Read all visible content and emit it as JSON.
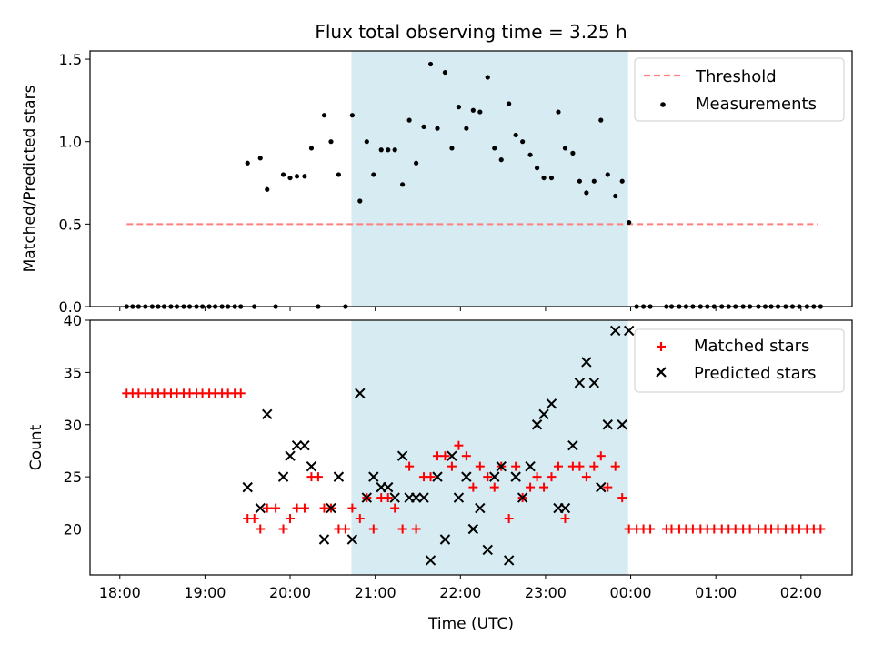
{
  "chart_data": [
    {
      "type": "scatter",
      "title": "Flux total observing time = 3.25 h",
      "xlabel": "",
      "ylabel": "Matched/Predicted stars",
      "ylim": [
        0,
        1.55
      ],
      "yticks": [
        0.0,
        0.5,
        1.0,
        1.5
      ],
      "ytick_labels": [
        "0.0",
        "0.5",
        "1.0",
        "1.5"
      ],
      "xlim": [
        17.65,
        26.6
      ],
      "xticks": [
        18,
        19,
        20,
        21,
        22,
        23,
        24,
        25,
        26
      ],
      "grid": false,
      "legend_position": "top-right",
      "shaded_span": {
        "x": [
          20.72,
          23.97
        ],
        "color": "#add8e6"
      },
      "threshold": {
        "name": "Threshold",
        "value": 0.5,
        "x": [
          18.08,
          26.2
        ],
        "color": "#ff7f7f"
      },
      "series": [
        {
          "name": "Measurements",
          "color": "#000000",
          "marker": "dot",
          "x": [
            18.08,
            18.15,
            18.22,
            18.3,
            18.38,
            18.45,
            18.52,
            18.6,
            18.67,
            18.75,
            18.82,
            18.9,
            18.97,
            19.05,
            19.12,
            19.2,
            19.27,
            19.35,
            19.42,
            19.5,
            19.58,
            19.65,
            19.73,
            19.83,
            19.92,
            20.0,
            20.08,
            20.17,
            20.25,
            20.33,
            20.4,
            20.48,
            20.57,
            20.65,
            20.73,
            20.82,
            20.9,
            20.98,
            21.07,
            21.15,
            21.23,
            21.32,
            21.4,
            21.48,
            21.57,
            21.65,
            21.73,
            21.82,
            21.9,
            21.98,
            22.07,
            22.15,
            22.23,
            22.32,
            22.4,
            22.48,
            22.57,
            22.65,
            22.73,
            22.82,
            22.9,
            22.98,
            23.07,
            23.15,
            23.23,
            23.32,
            23.4,
            23.48,
            23.57,
            23.65,
            23.73,
            23.82,
            23.9,
            23.98,
            24.07,
            24.15,
            24.23,
            24.42,
            24.48,
            24.57,
            24.65,
            24.73,
            24.82,
            24.9,
            24.98,
            25.07,
            25.15,
            25.23,
            25.32,
            25.4,
            25.5,
            25.58,
            25.65,
            25.73,
            25.82,
            25.9,
            25.98,
            26.07,
            26.15,
            26.23
          ],
          "y": [
            0,
            0,
            0,
            0,
            0,
            0,
            0,
            0,
            0,
            0,
            0,
            0,
            0,
            0,
            0,
            0,
            0,
            0,
            0,
            0.87,
            0,
            0.9,
            0.71,
            0,
            0.8,
            0.78,
            0.79,
            0.79,
            0.96,
            0,
            1.16,
            1.0,
            0.8,
            0,
            1.16,
            0.64,
            1.0,
            0.8,
            0.95,
            0.95,
            0.95,
            0.74,
            1.13,
            0.87,
            1.09,
            1.47,
            1.08,
            1.42,
            0.96,
            1.21,
            1.08,
            1.19,
            1.18,
            1.39,
            0.96,
            0.89,
            1.23,
            1.04,
            1.0,
            0.92,
            0.84,
            0.78,
            0.78,
            1.18,
            0.96,
            0.93,
            0.76,
            0.69,
            0.76,
            1.13,
            0.8,
            0.67,
            0.76,
            0.51,
            0,
            0,
            0,
            0,
            0,
            0,
            0,
            0,
            0,
            0,
            0,
            0,
            0,
            0,
            0,
            0,
            0,
            0,
            0,
            0,
            0,
            0,
            0,
            0,
            0,
            0
          ]
        }
      ]
    },
    {
      "type": "scatter",
      "title": "",
      "xlabel": "Time (UTC)",
      "ylabel": "Count",
      "ylim": [
        15.6,
        40.0
      ],
      "yticks": [
        20,
        25,
        30,
        35,
        40
      ],
      "ytick_labels": [
        "20",
        "25",
        "30",
        "35",
        "40"
      ],
      "xlim": [
        17.65,
        26.6
      ],
      "xticks": [
        18,
        19,
        20,
        21,
        22,
        23,
        24,
        25,
        26
      ],
      "xtick_labels": [
        "18:00",
        "19:00",
        "20:00",
        "21:00",
        "22:00",
        "23:00",
        "00:00",
        "01:00",
        "02:00"
      ],
      "grid": false,
      "legend_position": "top-right",
      "shaded_span": {
        "x": [
          20.72,
          23.97
        ],
        "color": "#add8e6"
      },
      "series": [
        {
          "name": "Matched stars",
          "color": "#ff0000",
          "marker": "plus",
          "x": [
            18.08,
            18.15,
            18.22,
            18.3,
            18.38,
            18.45,
            18.52,
            18.6,
            18.67,
            18.75,
            18.82,
            18.9,
            18.97,
            19.05,
            19.12,
            19.2,
            19.27,
            19.35,
            19.42,
            19.5,
            19.58,
            19.65,
            19.73,
            19.83,
            19.92,
            20.0,
            20.08,
            20.17,
            20.25,
            20.33,
            20.4,
            20.48,
            20.57,
            20.65,
            20.73,
            20.82,
            20.9,
            20.98,
            21.07,
            21.15,
            21.23,
            21.32,
            21.4,
            21.48,
            21.57,
            21.65,
            21.73,
            21.82,
            21.9,
            21.98,
            22.07,
            22.15,
            22.23,
            22.32,
            22.4,
            22.48,
            22.57,
            22.65,
            22.73,
            22.82,
            22.9,
            22.98,
            23.07,
            23.15,
            23.23,
            23.32,
            23.4,
            23.48,
            23.57,
            23.65,
            23.73,
            23.82,
            23.9,
            23.98,
            24.07,
            24.15,
            24.23,
            24.42,
            24.48,
            24.57,
            24.65,
            24.73,
            24.82,
            24.9,
            24.98,
            25.07,
            25.15,
            25.23,
            25.32,
            25.4,
            25.5,
            25.58,
            25.65,
            25.73,
            25.82,
            25.9,
            25.98,
            26.07,
            26.15,
            26.23
          ],
          "y": [
            33,
            33,
            33,
            33,
            33,
            33,
            33,
            33,
            33,
            33,
            33,
            33,
            33,
            33,
            33,
            33,
            33,
            33,
            33,
            21,
            21,
            20,
            22,
            22,
            20,
            21,
            22,
            22,
            25,
            25,
            22,
            22,
            20,
            20,
            22,
            21,
            23,
            20,
            23,
            23,
            22,
            20,
            26,
            20,
            25,
            25,
            27,
            27,
            26,
            28,
            27,
            24,
            26,
            25,
            24,
            26,
            21,
            26,
            23,
            24,
            25,
            24,
            25,
            26,
            21,
            26,
            26,
            25,
            26,
            27,
            24,
            26,
            23,
            20,
            20,
            20,
            20,
            20,
            20,
            20,
            20,
            20,
            20,
            20,
            20,
            20,
            20,
            20,
            20,
            20,
            20,
            20,
            20,
            20,
            20,
            20,
            20,
            20,
            20,
            20
          ]
        },
        {
          "name": "Predicted stars",
          "color": "#000000",
          "marker": "cross",
          "x": [
            19.5,
            19.65,
            19.73,
            19.92,
            20.0,
            20.08,
            20.17,
            20.25,
            20.4,
            20.48,
            20.57,
            20.73,
            20.82,
            20.9,
            20.98,
            21.07,
            21.15,
            21.23,
            21.32,
            21.4,
            21.48,
            21.57,
            21.65,
            21.73,
            21.82,
            21.9,
            21.98,
            22.07,
            22.15,
            22.23,
            22.32,
            22.4,
            22.48,
            22.57,
            22.65,
            22.73,
            22.82,
            22.9,
            22.98,
            23.07,
            23.15,
            23.23,
            23.32,
            23.4,
            23.48,
            23.57,
            23.65,
            23.73,
            23.82,
            23.9,
            23.98
          ],
          "y": [
            24,
            22,
            31,
            25,
            27,
            28,
            28,
            26,
            19,
            22,
            25,
            19,
            33,
            23,
            25,
            24,
            24,
            23,
            27,
            23,
            23,
            23,
            17,
            25,
            19,
            27,
            23,
            25,
            20,
            22,
            18,
            25,
            26,
            17,
            25,
            23,
            26,
            30,
            31,
            32,
            22,
            22,
            28,
            34,
            36,
            34,
            24,
            30,
            39,
            30,
            39
          ]
        }
      ]
    }
  ]
}
